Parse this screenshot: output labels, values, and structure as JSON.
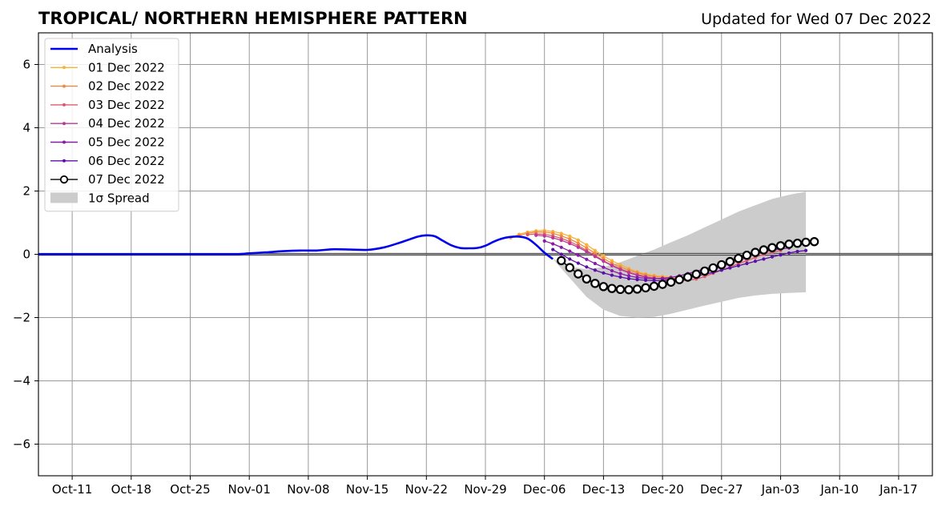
{
  "chart_data": {
    "type": "line",
    "title": "TROPICAL/ NORTHERN HEMISPHERE PATTERN",
    "subtitle": "Updated for Wed 07 Dec 2022",
    "xlabel": "",
    "ylabel": "",
    "xlim": [
      "2022-10-07",
      "2023-01-21"
    ],
    "ylim": [
      -7,
      7
    ],
    "grid": true,
    "legend_position": "top-left",
    "x_ticks": [
      {
        "date": "2022-10-11",
        "label": "Oct-11"
      },
      {
        "date": "2022-10-18",
        "label": "Oct-18"
      },
      {
        "date": "2022-10-25",
        "label": "Oct-25"
      },
      {
        "date": "2022-11-01",
        "label": "Nov-01"
      },
      {
        "date": "2022-11-08",
        "label": "Nov-08"
      },
      {
        "date": "2022-11-15",
        "label": "Nov-15"
      },
      {
        "date": "2022-11-22",
        "label": "Nov-22"
      },
      {
        "date": "2022-11-29",
        "label": "Nov-29"
      },
      {
        "date": "2022-12-06",
        "label": "Dec-06"
      },
      {
        "date": "2022-12-13",
        "label": "Dec-13"
      },
      {
        "date": "2022-12-20",
        "label": "Dec-20"
      },
      {
        "date": "2022-12-27",
        "label": "Dec-27"
      },
      {
        "date": "2023-01-03",
        "label": "Jan-03"
      },
      {
        "date": "2023-01-10",
        "label": "Jan-10"
      },
      {
        "date": "2023-01-17",
        "label": "Jan-17"
      }
    ],
    "y_ticks": [
      {
        "value": -6,
        "label": "−6"
      },
      {
        "value": -4,
        "label": "−4"
      },
      {
        "value": -2,
        "label": "−2"
      },
      {
        "value": 0,
        "label": "0"
      },
      {
        "value": 2,
        "label": "2"
      },
      {
        "value": 4,
        "label": "4"
      },
      {
        "value": 6,
        "label": "6"
      }
    ],
    "analysis": {
      "name": "Analysis",
      "color": "#0000ee",
      "points": [
        [
          "2022-10-07",
          0.0
        ],
        [
          "2022-10-15",
          0.0
        ],
        [
          "2022-10-25",
          0.0
        ],
        [
          "2022-10-30",
          0.0
        ],
        [
          "2022-11-01",
          0.03
        ],
        [
          "2022-11-03",
          0.06
        ],
        [
          "2022-11-05",
          0.1
        ],
        [
          "2022-11-07",
          0.12
        ],
        [
          "2022-11-09",
          0.12
        ],
        [
          "2022-11-11",
          0.16
        ],
        [
          "2022-11-13",
          0.15
        ],
        [
          "2022-11-15",
          0.14
        ],
        [
          "2022-11-17",
          0.22
        ],
        [
          "2022-11-19",
          0.38
        ],
        [
          "2022-11-21",
          0.56
        ],
        [
          "2022-11-22",
          0.6
        ],
        [
          "2022-11-23",
          0.57
        ],
        [
          "2022-11-24",
          0.42
        ],
        [
          "2022-11-25",
          0.28
        ],
        [
          "2022-11-26",
          0.2
        ],
        [
          "2022-11-27",
          0.19
        ],
        [
          "2022-11-28",
          0.2
        ],
        [
          "2022-11-29",
          0.27
        ],
        [
          "2022-11-30",
          0.4
        ],
        [
          "2022-12-01",
          0.5
        ],
        [
          "2022-12-02",
          0.55
        ],
        [
          "2022-12-03",
          0.56
        ],
        [
          "2022-12-04",
          0.5
        ],
        [
          "2022-12-05",
          0.3
        ],
        [
          "2022-12-06",
          0.05
        ],
        [
          "2022-12-07",
          -0.15
        ]
      ]
    },
    "spread": {
      "name": "1σ Spread",
      "color": "#cccccc",
      "upper": [
        [
          "2022-12-07",
          -0.15
        ],
        [
          "2022-12-09",
          -0.38
        ],
        [
          "2022-12-11",
          -0.48
        ],
        [
          "2022-12-13",
          -0.4
        ],
        [
          "2022-12-15",
          -0.25
        ],
        [
          "2022-12-17",
          -0.05
        ],
        [
          "2022-12-19",
          0.15
        ],
        [
          "2022-12-21",
          0.38
        ],
        [
          "2022-12-23",
          0.6
        ],
        [
          "2022-12-25",
          0.85
        ],
        [
          "2022-12-27",
          1.1
        ],
        [
          "2022-12-29",
          1.35
        ],
        [
          "2022-12-31",
          1.55
        ],
        [
          "2023-01-02",
          1.75
        ],
        [
          "2023-01-04",
          1.88
        ],
        [
          "2023-01-06",
          1.98
        ]
      ],
      "lower": [
        [
          "2022-12-07",
          -0.15
        ],
        [
          "2022-12-09",
          -0.75
        ],
        [
          "2022-12-11",
          -1.35
        ],
        [
          "2022-12-13",
          -1.75
        ],
        [
          "2022-12-15",
          -1.95
        ],
        [
          "2022-12-17",
          -2.0
        ],
        [
          "2022-12-19",
          -1.98
        ],
        [
          "2022-12-21",
          -1.88
        ],
        [
          "2022-12-23",
          -1.75
        ],
        [
          "2022-12-25",
          -1.62
        ],
        [
          "2022-12-27",
          -1.5
        ],
        [
          "2022-12-29",
          -1.38
        ],
        [
          "2022-12-31",
          -1.3
        ],
        [
          "2023-01-02",
          -1.25
        ],
        [
          "2023-01-04",
          -1.22
        ],
        [
          "2023-01-06",
          -1.2
        ]
      ]
    },
    "series": [
      {
        "name": "01 Dec 2022",
        "color": "#f7b239",
        "points": [
          [
            "2022-12-02",
            0.52
          ],
          [
            "2022-12-03",
            0.63
          ],
          [
            "2022-12-04",
            0.7
          ],
          [
            "2022-12-05",
            0.74
          ],
          [
            "2022-12-06",
            0.75
          ],
          [
            "2022-12-07",
            0.72
          ],
          [
            "2022-12-08",
            0.66
          ],
          [
            "2022-12-09",
            0.57
          ],
          [
            "2022-12-10",
            0.45
          ],
          [
            "2022-12-11",
            0.3
          ],
          [
            "2022-12-12",
            0.12
          ],
          [
            "2022-12-13",
            -0.05
          ],
          [
            "2022-12-14",
            -0.2
          ],
          [
            "2022-12-15",
            -0.33
          ],
          [
            "2022-12-16",
            -0.45
          ],
          [
            "2022-12-17",
            -0.55
          ],
          [
            "2022-12-18",
            -0.62
          ],
          [
            "2022-12-19",
            -0.67
          ],
          [
            "2022-12-20",
            -0.7
          ],
          [
            "2022-12-21",
            -0.72
          ]
        ]
      },
      {
        "name": "02 Dec 2022",
        "color": "#f08a40",
        "points": [
          [
            "2022-12-03",
            0.6
          ],
          [
            "2022-12-04",
            0.66
          ],
          [
            "2022-12-05",
            0.7
          ],
          [
            "2022-12-06",
            0.7
          ],
          [
            "2022-12-07",
            0.66
          ],
          [
            "2022-12-08",
            0.58
          ],
          [
            "2022-12-09",
            0.48
          ],
          [
            "2022-12-10",
            0.35
          ],
          [
            "2022-12-11",
            0.2
          ],
          [
            "2022-12-12",
            0.03
          ],
          [
            "2022-12-13",
            -0.13
          ],
          [
            "2022-12-14",
            -0.28
          ],
          [
            "2022-12-15",
            -0.4
          ],
          [
            "2022-12-16",
            -0.5
          ],
          [
            "2022-12-17",
            -0.58
          ],
          [
            "2022-12-18",
            -0.65
          ],
          [
            "2022-12-19",
            -0.7
          ],
          [
            "2022-12-20",
            -0.73
          ],
          [
            "2022-12-21",
            -0.75
          ],
          [
            "2022-12-22",
            -0.77
          ]
        ]
      },
      {
        "name": "03 Dec 2022",
        "color": "#de5a6a",
        "points": [
          [
            "2022-12-04",
            0.62
          ],
          [
            "2022-12-05",
            0.64
          ],
          [
            "2022-12-06",
            0.63
          ],
          [
            "2022-12-07",
            0.58
          ],
          [
            "2022-12-08",
            0.5
          ],
          [
            "2022-12-09",
            0.4
          ],
          [
            "2022-12-10",
            0.27
          ],
          [
            "2022-12-11",
            0.12
          ],
          [
            "2022-12-12",
            -0.04
          ],
          [
            "2022-12-13",
            -0.2
          ],
          [
            "2022-12-14",
            -0.34
          ],
          [
            "2022-12-15",
            -0.46
          ],
          [
            "2022-12-16",
            -0.56
          ],
          [
            "2022-12-17",
            -0.64
          ],
          [
            "2022-12-18",
            -0.7
          ],
          [
            "2022-12-19",
            -0.75
          ],
          [
            "2022-12-20",
            -0.78
          ],
          [
            "2022-12-21",
            -0.8
          ],
          [
            "2022-12-22",
            -0.82
          ],
          [
            "2022-12-23",
            -0.82
          ],
          [
            "2022-12-24",
            -0.78
          ],
          [
            "2022-12-25",
            -0.7
          ],
          [
            "2022-12-26",
            -0.6
          ],
          [
            "2022-12-27",
            -0.5
          ],
          [
            "2022-12-28",
            -0.4
          ],
          [
            "2022-12-29",
            -0.3
          ],
          [
            "2022-12-30",
            -0.2
          ],
          [
            "2022-12-31",
            -0.1
          ],
          [
            "2023-01-01",
            0.0
          ],
          [
            "2023-01-02",
            0.06
          ],
          [
            "2023-01-03",
            0.12
          ]
        ]
      },
      {
        "name": "04 Dec 2022",
        "color": "#b83a96",
        "points": [
          [
            "2022-12-05",
            0.6
          ],
          [
            "2022-12-06",
            0.58
          ],
          [
            "2022-12-07",
            0.52
          ],
          [
            "2022-12-08",
            0.44
          ],
          [
            "2022-12-09",
            0.34
          ],
          [
            "2022-12-10",
            0.22
          ],
          [
            "2022-12-11",
            0.08
          ],
          [
            "2022-12-12",
            -0.07
          ],
          [
            "2022-12-13",
            -0.22
          ],
          [
            "2022-12-14",
            -0.36
          ],
          [
            "2022-12-15",
            -0.48
          ],
          [
            "2022-12-16",
            -0.58
          ],
          [
            "2022-12-17",
            -0.66
          ],
          [
            "2022-12-18",
            -0.72
          ],
          [
            "2022-12-19",
            -0.76
          ],
          [
            "2022-12-20",
            -0.78
          ],
          [
            "2022-12-21",
            -0.78
          ],
          [
            "2022-12-22",
            -0.76
          ],
          [
            "2022-12-23",
            -0.72
          ],
          [
            "2022-12-24",
            -0.65
          ],
          [
            "2022-12-25",
            -0.57
          ],
          [
            "2022-12-26",
            -0.48
          ],
          [
            "2022-12-27",
            -0.39
          ],
          [
            "2022-12-28",
            -0.3
          ],
          [
            "2022-12-29",
            -0.2
          ],
          [
            "2022-12-30",
            -0.1
          ],
          [
            "2022-12-31",
            0.0
          ],
          [
            "2023-01-01",
            0.08
          ],
          [
            "2023-01-02",
            0.15
          ],
          [
            "2023-01-03",
            0.2
          ]
        ]
      },
      {
        "name": "05 Dec 2022",
        "color": "#8a1aa8",
        "points": [
          [
            "2022-12-06",
            0.42
          ],
          [
            "2022-12-07",
            0.33
          ],
          [
            "2022-12-08",
            0.22
          ],
          [
            "2022-12-09",
            0.1
          ],
          [
            "2022-12-10",
            -0.03
          ],
          [
            "2022-12-11",
            -0.16
          ],
          [
            "2022-12-12",
            -0.29
          ],
          [
            "2022-12-13",
            -0.41
          ],
          [
            "2022-12-14",
            -0.52
          ],
          [
            "2022-12-15",
            -0.61
          ],
          [
            "2022-12-16",
            -0.68
          ],
          [
            "2022-12-17",
            -0.73
          ],
          [
            "2022-12-18",
            -0.76
          ],
          [
            "2022-12-19",
            -0.77
          ],
          [
            "2022-12-20",
            -0.76
          ],
          [
            "2022-12-21",
            -0.73
          ],
          [
            "2022-12-22",
            -0.68
          ],
          [
            "2022-12-23",
            -0.61
          ],
          [
            "2022-12-24",
            -0.54
          ],
          [
            "2022-12-25",
            -0.46
          ],
          [
            "2022-12-26",
            -0.38
          ],
          [
            "2022-12-27",
            -0.3
          ],
          [
            "2022-12-28",
            -0.22
          ],
          [
            "2022-12-29",
            -0.14
          ],
          [
            "2022-12-30",
            -0.06
          ],
          [
            "2022-12-31",
            0.02
          ],
          [
            "2023-01-01",
            0.08
          ],
          [
            "2023-01-02",
            0.13
          ],
          [
            "2023-01-03",
            0.17
          ],
          [
            "2023-01-04",
            0.2
          ]
        ]
      },
      {
        "name": "06 Dec 2022",
        "color": "#5a0fa8",
        "points": [
          [
            "2022-12-07",
            0.15
          ],
          [
            "2022-12-08",
            0.0
          ],
          [
            "2022-12-09",
            -0.15
          ],
          [
            "2022-12-10",
            -0.28
          ],
          [
            "2022-12-11",
            -0.4
          ],
          [
            "2022-12-12",
            -0.5
          ],
          [
            "2022-12-13",
            -0.59
          ],
          [
            "2022-12-14",
            -0.66
          ],
          [
            "2022-12-15",
            -0.72
          ],
          [
            "2022-12-16",
            -0.77
          ],
          [
            "2022-12-17",
            -0.8
          ],
          [
            "2022-12-18",
            -0.82
          ],
          [
            "2022-12-19",
            -0.83
          ],
          [
            "2022-12-20",
            -0.83
          ],
          [
            "2022-12-21",
            -0.81
          ],
          [
            "2022-12-22",
            -0.78
          ],
          [
            "2022-12-23",
            -0.74
          ],
          [
            "2022-12-24",
            -0.69
          ],
          [
            "2022-12-25",
            -0.63
          ],
          [
            "2022-12-26",
            -0.57
          ],
          [
            "2022-12-27",
            -0.5
          ],
          [
            "2022-12-28",
            -0.43
          ],
          [
            "2022-12-29",
            -0.36
          ],
          [
            "2022-12-30",
            -0.29
          ],
          [
            "2022-12-31",
            -0.22
          ],
          [
            "2023-01-01",
            -0.15
          ],
          [
            "2023-01-02",
            -0.08
          ],
          [
            "2023-01-03",
            -0.02
          ],
          [
            "2023-01-04",
            0.04
          ],
          [
            "2023-01-05",
            0.09
          ],
          [
            "2023-01-06",
            0.12
          ]
        ]
      },
      {
        "name": "07 Dec 2022",
        "color": "#000000",
        "points": [
          [
            "2022-12-08",
            -0.2
          ],
          [
            "2022-12-09",
            -0.42
          ],
          [
            "2022-12-10",
            -0.62
          ],
          [
            "2022-12-11",
            -0.78
          ],
          [
            "2022-12-12",
            -0.92
          ],
          [
            "2022-12-13",
            -1.02
          ],
          [
            "2022-12-14",
            -1.08
          ],
          [
            "2022-12-15",
            -1.11
          ],
          [
            "2022-12-16",
            -1.12
          ],
          [
            "2022-12-17",
            -1.1
          ],
          [
            "2022-12-18",
            -1.06
          ],
          [
            "2022-12-19",
            -1.01
          ],
          [
            "2022-12-20",
            -0.95
          ],
          [
            "2022-12-21",
            -0.88
          ],
          [
            "2022-12-22",
            -0.8
          ],
          [
            "2022-12-23",
            -0.72
          ],
          [
            "2022-12-24",
            -0.63
          ],
          [
            "2022-12-25",
            -0.53
          ],
          [
            "2022-12-26",
            -0.43
          ],
          [
            "2022-12-27",
            -0.33
          ],
          [
            "2022-12-28",
            -0.23
          ],
          [
            "2022-12-29",
            -0.13
          ],
          [
            "2022-12-30",
            -0.03
          ],
          [
            "2022-12-31",
            0.06
          ],
          [
            "2023-01-01",
            0.14
          ],
          [
            "2023-01-02",
            0.21
          ],
          [
            "2023-01-03",
            0.27
          ],
          [
            "2023-01-04",
            0.32
          ],
          [
            "2023-01-05",
            0.35
          ],
          [
            "2023-01-06",
            0.38
          ],
          [
            "2023-01-07",
            0.4
          ]
        ]
      }
    ]
  }
}
